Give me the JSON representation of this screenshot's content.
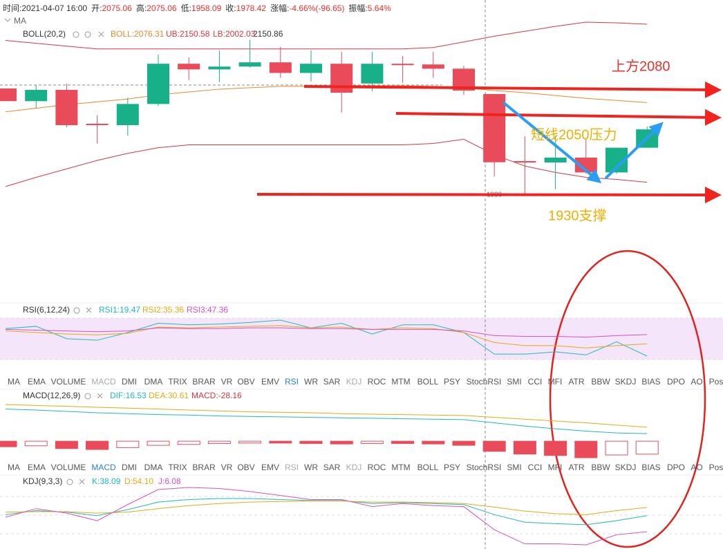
{
  "header": [
    {
      "label": "时间:",
      "value": "2021-04-07 16:00"
    },
    {
      "label": "开:",
      "value": "2075.06"
    },
    {
      "label": "高:",
      "value": "2075.06"
    },
    {
      "label": "低:",
      "value": "1958.09"
    },
    {
      "label": "收:",
      "value": "1978.42"
    },
    {
      "label": "涨幅:",
      "value": "-4.66%(-96.65)"
    },
    {
      "label": "振幅:",
      "value": "5.64%"
    }
  ],
  "ma_label": "MA",
  "boll_legend": {
    "name": "BOLL(20,2)",
    "mid": "BOLL:2076.31",
    "ub": "UB:2150.58",
    "lb": "LB:2002.03",
    "max_marker": "2150.86",
    "crosshair_price": "1930"
  },
  "candles": [
    {
      "open": 2083,
      "high": 2083,
      "low": 2065,
      "close": 2065
    },
    {
      "open": 2065,
      "high": 2088,
      "low": 2055,
      "close": 2081
    },
    {
      "open": 2081,
      "high": 2090,
      "low": 2028,
      "close": 2031
    },
    {
      "open": 2033,
      "high": 2045,
      "low": 2005,
      "close": 2031
    },
    {
      "open": 2031,
      "high": 2070,
      "low": 2016,
      "close": 2061
    },
    {
      "open": 2061,
      "high": 2131,
      "low": 2058,
      "close": 2118
    },
    {
      "open": 2118,
      "high": 2127,
      "low": 2095,
      "close": 2110
    },
    {
      "open": 2110,
      "high": 2137,
      "low": 2092,
      "close": 2114
    },
    {
      "open": 2114,
      "high": 2152,
      "low": 2113,
      "close": 2120
    },
    {
      "open": 2120,
      "high": 2142,
      "low": 2098,
      "close": 2105
    },
    {
      "open": 2105,
      "high": 2137,
      "low": 2093,
      "close": 2118
    },
    {
      "open": 2118,
      "high": 2135,
      "low": 2049,
      "close": 2077
    },
    {
      "open": 2090,
      "high": 2135,
      "low": 2079,
      "close": 2118
    },
    {
      "open": 2118,
      "high": 2129,
      "low": 2091,
      "close": 2116
    },
    {
      "open": 2117,
      "high": 2135,
      "low": 2098,
      "close": 2111
    },
    {
      "open": 2111,
      "high": 2115,
      "low": 2074,
      "close": 2080
    },
    {
      "open": 2075.06,
      "high": 2075.06,
      "low": 1958.09,
      "close": 1978.42
    },
    {
      "open": 1980,
      "high": 2015,
      "low": 1932,
      "close": 1978
    },
    {
      "open": 1978,
      "high": 2016,
      "low": 1940,
      "close": 1985
    },
    {
      "open": 1985,
      "high": 2011,
      "low": 1962,
      "close": 1964
    },
    {
      "open": 1964,
      "high": 1999,
      "low": 1962,
      "close": 1999
    },
    {
      "open": 1999,
      "high": 2029,
      "low": 1999,
      "close": 2025
    }
  ],
  "boll": {
    "upper": [
      2151,
      2147,
      2143,
      2139,
      2139,
      2139,
      2139,
      2139,
      2139,
      2139,
      2139,
      2139,
      2139,
      2139,
      2141,
      2149,
      2157,
      2164,
      2171,
      2177,
      2176,
      2174
    ],
    "mid": [
      2050,
      2055,
      2060,
      2064,
      2068,
      2074,
      2078,
      2082,
      2084,
      2086,
      2086,
      2087,
      2087,
      2087,
      2086,
      2084,
      2080,
      2077,
      2073,
      2069,
      2066,
      2063
    ],
    "lower": [
      1944,
      1957,
      1969,
      1981,
      1991,
      1999,
      2003,
      2003,
      2003,
      2003,
      2003,
      2003,
      2003,
      2003,
      2005,
      2011,
      1989,
      1973,
      1964,
      1957,
      1954,
      1950
    ]
  },
  "annotations": {
    "resistance_high": "上方2080",
    "resistance_short": "短线2050压力",
    "support": "1930支撑"
  },
  "rsi": {
    "title": "RSI(6,12,24)",
    "rsi1_label": "RSI1:19.47",
    "rsi2_label": "RSI2:35.36",
    "rsi3_label": "RSI3:47.36",
    "rsi1": [
      55,
      58,
      42,
      40,
      50,
      62,
      60,
      61,
      63,
      66,
      56,
      62,
      48,
      60,
      60,
      50,
      22,
      22,
      25,
      21,
      38,
      19.47
    ],
    "rsi2": [
      52,
      50,
      48,
      47,
      49,
      57,
      56,
      57,
      58,
      59,
      56,
      57,
      54,
      56,
      55,
      50,
      37,
      33,
      33,
      30,
      33,
      35.36
    ],
    "rsi3": [
      54,
      53,
      52,
      51,
      52,
      56,
      55,
      55,
      56,
      56,
      55,
      55,
      54,
      54,
      54,
      52,
      46,
      45,
      45,
      44,
      46,
      47.36
    ]
  },
  "indicator_tabs": [
    "MA",
    "EMA",
    "VOLUME",
    "MACD",
    "DMI",
    "DMA",
    "TRIX",
    "BRAR",
    "VR",
    "OBV",
    "EMV",
    "RSI",
    "WR",
    "SAR",
    "KDJ",
    "ROC",
    "MTM",
    "BOLL",
    "PSY",
    "StochRSI",
    "SMI",
    "CCI",
    "MFI",
    "ATR",
    "BBW",
    "SKDJ",
    "BIAS",
    "DPO",
    "AO",
    "Pos"
  ],
  "macd": {
    "title": "MACD(12,26,9)",
    "dif_label": "DIF:16.53",
    "dea_label": "DEA:30.61",
    "macd_label": "MACD:-28.16",
    "dif": [
      70,
      68,
      65,
      62,
      60,
      58,
      57,
      55,
      54,
      53,
      52,
      51,
      50,
      49,
      48,
      47,
      40,
      33,
      27,
      22,
      18,
      16.53
    ],
    "dea": [
      80,
      78,
      76,
      74,
      72,
      70,
      68,
      66,
      64,
      63,
      62,
      60,
      59,
      58,
      57,
      56,
      52,
      48,
      44,
      40,
      35,
      30.61
    ],
    "hist": [
      -12,
      -10,
      -16,
      -18,
      -14,
      -9,
      -7,
      -5,
      -4,
      -4,
      -5,
      -6,
      -5,
      -5,
      -6,
      -9,
      -22,
      -28,
      -31,
      -36,
      -30,
      -28.16
    ]
  },
  "kdj": {
    "title": "KDJ(9,3,3)",
    "k_label": "K:38.09",
    "d_label": "D:54.10",
    "j_label": "J:6.08",
    "k": [
      40,
      48,
      45,
      38,
      50,
      65,
      70,
      72,
      72,
      70,
      68,
      68,
      62,
      64,
      62,
      60,
      40,
      25,
      22,
      20,
      28,
      38.09
    ],
    "d": [
      45,
      46,
      46,
      43,
      45,
      52,
      58,
      62,
      65,
      66,
      67,
      67,
      65,
      65,
      64,
      62,
      55,
      47,
      42,
      40,
      48,
      54.1
    ],
    "j": [
      35,
      52,
      43,
      28,
      60,
      90,
      94,
      92,
      86,
      78,
      70,
      70,
      56,
      62,
      58,
      56,
      10,
      -18,
      -18,
      -20,
      0,
      6.08
    ]
  }
}
